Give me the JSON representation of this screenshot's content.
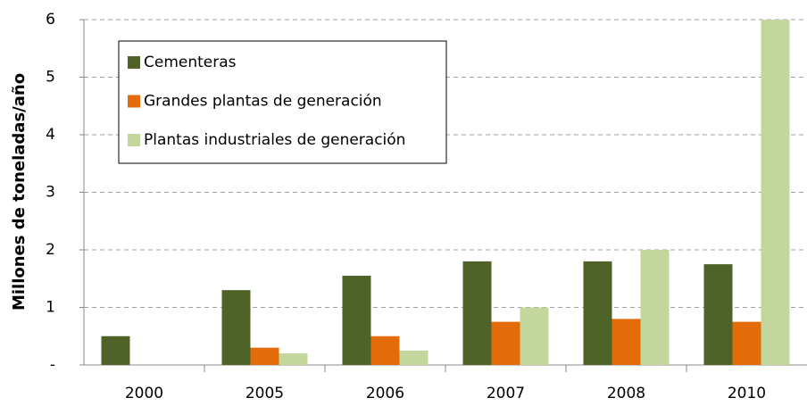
{
  "chart_data": {
    "type": "bar",
    "y_axis_label": "Millones de toneladas/año",
    "categories": [
      "2000",
      "2005",
      "2006",
      "2007",
      "2008",
      "2010"
    ],
    "series": [
      {
        "name": "Cementeras",
        "color": "#4f6228",
        "values": [
          0.5,
          1.3,
          1.55,
          1.8,
          1.8,
          1.75
        ]
      },
      {
        "name": "Grandes plantas de generación",
        "color": "#e36c09",
        "values": [
          0,
          0.3,
          0.5,
          0.75,
          0.8,
          0.75
        ]
      },
      {
        "name": "Plantas industriales de generación",
        "color": "#c3d69b",
        "values": [
          0,
          0.2,
          0.25,
          1.0,
          2.0,
          6.0
        ]
      }
    ],
    "ylim": [
      0,
      6
    ],
    "yticks": [
      {
        "value": 0,
        "label": "-"
      },
      1,
      2,
      3,
      4,
      5,
      6
    ],
    "grid": true,
    "legend": "upper left"
  }
}
